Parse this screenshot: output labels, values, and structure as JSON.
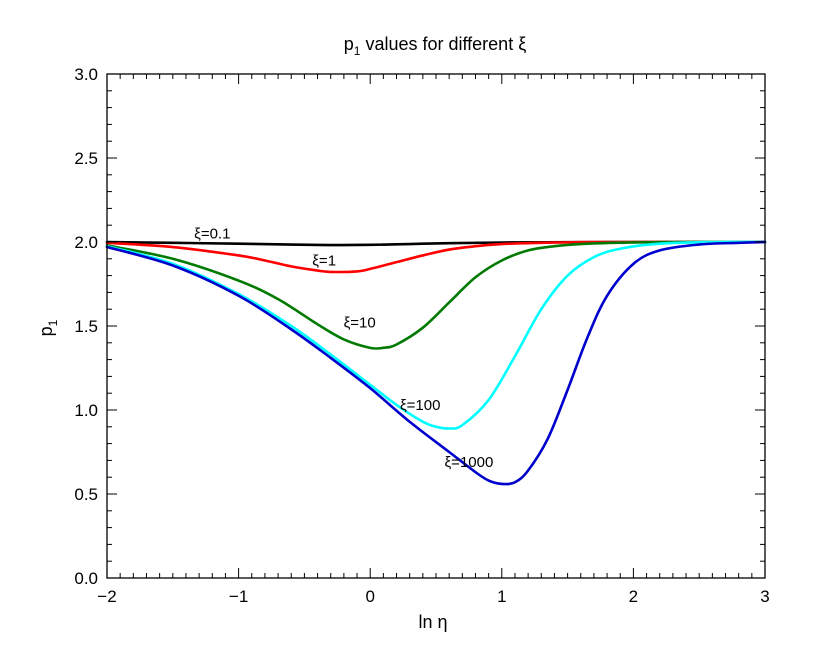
{
  "chart_data": {
    "type": "line",
    "title": {
      "base": "p",
      "sub": "1",
      "rest": " values for different ξ"
    },
    "xlabel": "ln η",
    "ylabel": {
      "base": "p",
      "sub": "1"
    },
    "xlim": [
      -2,
      3
    ],
    "ylim": [
      0,
      3
    ],
    "xticks": [
      -2,
      -1,
      0,
      1,
      2,
      3
    ],
    "xtick_labels": [
      "−2",
      "−1",
      "0",
      "1",
      "2",
      "3"
    ],
    "yticks": [
      0,
      0.5,
      1.0,
      1.5,
      2.0,
      2.5,
      3.0
    ],
    "ytick_labels": [
      "0.0",
      "0.5",
      "1.0",
      "1.5",
      "2.0",
      "2.5",
      "3.0"
    ],
    "grid": false,
    "legend": "inline curve labels",
    "series": [
      {
        "name": "ξ=0.1",
        "color": "#000000",
        "label_at": [
          -1.2,
          2.02
        ],
        "x": [
          -2.0,
          -1.5,
          -1.0,
          -0.6,
          -0.3,
          0.0,
          0.3,
          0.6,
          1.0,
          1.5,
          2.0,
          2.5,
          3.0
        ],
        "y": [
          2.0,
          1.995,
          1.99,
          1.985,
          1.982,
          1.983,
          1.988,
          1.993,
          1.997,
          1.999,
          2.0,
          2.0,
          2.0
        ]
      },
      {
        "name": "ξ=1",
        "color": "#ff0000",
        "label_at": [
          -0.35,
          1.86
        ],
        "x": [
          -2.0,
          -1.5,
          -1.0,
          -0.8,
          -0.6,
          -0.4,
          -0.3,
          -0.1,
          0.0,
          0.2,
          0.4,
          0.6,
          0.8,
          1.0,
          1.3,
          1.6,
          2.0,
          2.5,
          3.0
        ],
        "y": [
          1.995,
          1.97,
          1.92,
          1.89,
          1.855,
          1.83,
          1.822,
          1.825,
          1.84,
          1.88,
          1.92,
          1.955,
          1.975,
          1.988,
          1.995,
          1.999,
          2.0,
          2.0,
          2.0
        ]
      },
      {
        "name": "ξ=10",
        "color": "#007a00",
        "label_at": [
          -0.08,
          1.49
        ],
        "x": [
          -2.0,
          -1.5,
          -1.0,
          -0.7,
          -0.4,
          -0.2,
          0.0,
          0.1,
          0.2,
          0.4,
          0.6,
          0.8,
          1.0,
          1.2,
          1.4,
          1.6,
          1.9,
          2.2,
          2.6,
          3.0
        ],
        "y": [
          1.98,
          1.9,
          1.77,
          1.66,
          1.51,
          1.42,
          1.37,
          1.37,
          1.39,
          1.49,
          1.64,
          1.79,
          1.89,
          1.95,
          1.975,
          1.988,
          1.996,
          1.999,
          2.0,
          2.0
        ]
      },
      {
        "name": "ξ=100",
        "color": "#00ffff",
        "label_at": [
          0.38,
          1.0
        ],
        "x": [
          -2.0,
          -1.5,
          -1.0,
          -0.6,
          -0.3,
          0.0,
          0.2,
          0.4,
          0.5,
          0.6,
          0.7,
          0.9,
          1.1,
          1.3,
          1.5,
          1.7,
          1.9,
          2.2,
          2.6,
          3.0
        ],
        "y": [
          1.975,
          1.87,
          1.69,
          1.5,
          1.33,
          1.15,
          1.03,
          0.93,
          0.9,
          0.89,
          0.91,
          1.06,
          1.32,
          1.6,
          1.8,
          1.91,
          1.96,
          1.99,
          2.0,
          2.0
        ]
      },
      {
        "name": "ξ=1000",
        "color": "#0000cc",
        "label_at": [
          0.75,
          0.66
        ],
        "x": [
          -2.0,
          -1.5,
          -1.0,
          -0.6,
          -0.3,
          0.0,
          0.3,
          0.6,
          0.8,
          0.9,
          1.0,
          1.1,
          1.2,
          1.35,
          1.5,
          1.65,
          1.8,
          2.0,
          2.2,
          2.5,
          2.8,
          3.0
        ],
        "y": [
          1.97,
          1.86,
          1.68,
          1.48,
          1.31,
          1.13,
          0.93,
          0.75,
          0.63,
          0.58,
          0.56,
          0.57,
          0.64,
          0.83,
          1.12,
          1.43,
          1.68,
          1.87,
          1.95,
          1.985,
          1.995,
          2.0
        ]
      }
    ]
  }
}
